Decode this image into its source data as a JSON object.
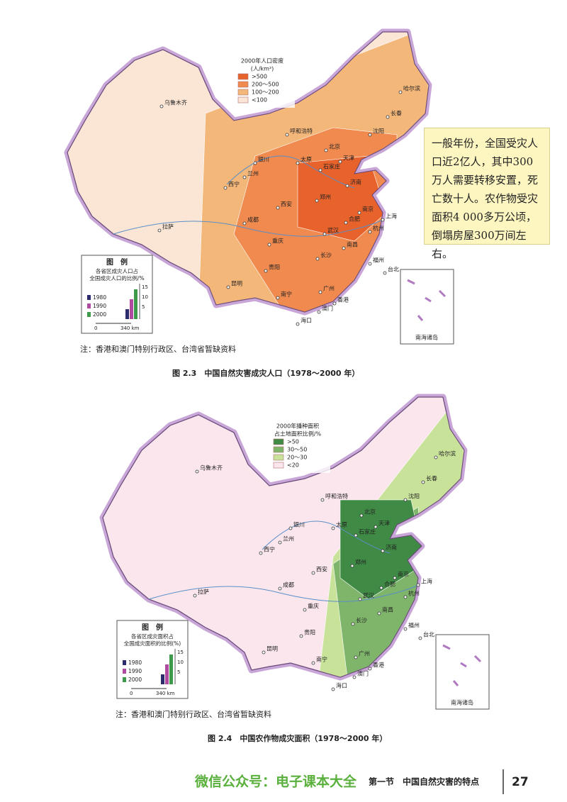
{
  "map1": {
    "legend": {
      "title": "2000年人口密度",
      "unit": "(人/km²)",
      "items": [
        {
          "label": ">500",
          "color": "#e8622c"
        },
        {
          "label": "200～500",
          "color": "#f08a4f"
        },
        {
          "label": "100～200",
          "color": "#f4b77a"
        },
        {
          "label": "<100",
          "color": "#fbe6d6"
        }
      ]
    },
    "cities": [
      "乌鲁木齐",
      "哈尔滨",
      "长春",
      "沈阳",
      "呼和浩特",
      "北京",
      "天津",
      "太原",
      "石家庄",
      "银川",
      "兰州",
      "西宁",
      "济南",
      "郑州",
      "西安",
      "南京",
      "合肥",
      "上海",
      "杭州",
      "武汉",
      "成都",
      "重庆",
      "长沙",
      "南昌",
      "福州",
      "贵阳",
      "昆明",
      "南宁",
      "广州",
      "香港",
      "澳门",
      "海口",
      "台北",
      "拉萨"
    ],
    "inset": {
      "title": "图　例",
      "description": [
        "各省区成灾人口占",
        "全国成灾人口的比例/%"
      ],
      "series": [
        {
          "name": "1980",
          "color": "#2b2b6e"
        },
        {
          "name": "1990",
          "color": "#b04aa0"
        },
        {
          "name": "2000",
          "color": "#3c9a4a"
        }
      ],
      "axis_ticks": [
        "15",
        "10",
        "5"
      ],
      "scale": [
        "0",
        "340 km"
      ]
    },
    "south_sea": "南海诸岛",
    "note": "注：香港和澳门特别行政区、台湾省暂缺资料",
    "caption": "图 2.3　中国自然灾害成灾人口（1978～2000 年）"
  },
  "textbox": "一般年份，全国受灾人口近2亿人，其中300万人需要转移安置，死亡数十人。农作物受灾面积4 000多万公顷，倒塌房屋300万间左右。",
  "map2": {
    "legend": {
      "title": "2000年播种面积",
      "unit": "占土地面积比例/%",
      "items": [
        {
          "label": ">50",
          "color": "#3f8a44"
        },
        {
          "label": "30～50",
          "color": "#7fb56b"
        },
        {
          "label": "20～30",
          "color": "#c8e29a"
        },
        {
          "label": "<20",
          "color": "#fbe6ee"
        }
      ]
    },
    "cities": [
      "乌鲁木齐",
      "哈尔滨",
      "长春",
      "沈阳",
      "呼和浩特",
      "北京",
      "天津",
      "太原",
      "石家庄",
      "银川",
      "兰州",
      "西宁",
      "济南",
      "郑州",
      "西安",
      "南京",
      "合肥",
      "上海",
      "杭州",
      "武汉",
      "成都",
      "重庆",
      "长沙",
      "南昌",
      "福州",
      "贵阳",
      "昆明",
      "南宁",
      "广州",
      "香港",
      "澳门",
      "海口",
      "台北",
      "拉萨"
    ],
    "inset": {
      "title": "图　例",
      "description": [
        "各省区成灾面积占",
        "全国成灾面积的比例(%)"
      ],
      "series": [
        {
          "name": "1980",
          "color": "#2b2b6e"
        },
        {
          "name": "1990",
          "color": "#b04aa0"
        },
        {
          "name": "2000",
          "color": "#3c9a4a"
        }
      ],
      "axis_ticks": [
        "15",
        "10",
        "5"
      ],
      "scale": [
        "0",
        "340 km"
      ]
    },
    "south_sea": "南海诸岛",
    "note": "注：香港和澳门特别行政区、台湾省暂缺资料",
    "caption": "图 2.4　中国农作物成灾面积（1978～2000 年）"
  },
  "footer": {
    "watermark": "微信公众号：电子课本大全",
    "section": "第一节　中国自然灾害的特点",
    "page": "27"
  }
}
